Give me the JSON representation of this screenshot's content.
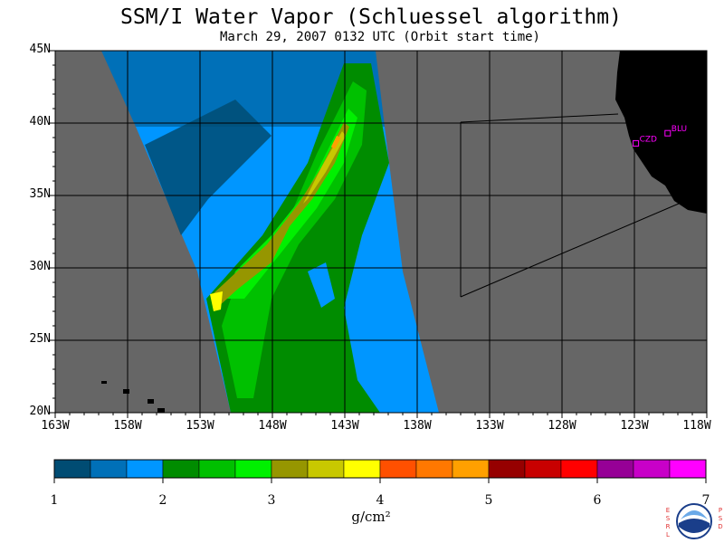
{
  "header": {
    "title": "SSM/I Water Vapor (Schluessel algorithm)",
    "subtitle": "March 29, 2007  0132 UTC  (Orbit start time)"
  },
  "map": {
    "lat_labels": [
      "45N",
      "40N",
      "35N",
      "30N",
      "25N",
      "20N"
    ],
    "lon_labels": [
      "163W",
      "158W",
      "153W",
      "148W",
      "143W",
      "138W",
      "133W",
      "128W",
      "123W",
      "118W"
    ],
    "lat_range": [
      20,
      45
    ],
    "lon_range": [
      -163,
      -118
    ],
    "stations": [
      {
        "id": "CZD",
        "lon": -122.9,
        "lat": 38.6
      },
      {
        "id": "BLU",
        "lon": -120.7,
        "lat": 39.3
      }
    ],
    "colors": {
      "background": "#666666",
      "land": "#000000",
      "station": "#ff00ff",
      "grid": "#000000"
    }
  },
  "colorbar": {
    "tick_labels": [
      "1",
      "2",
      "3",
      "4",
      "5",
      "6",
      "7"
    ],
    "unit": "g/cm²",
    "colors": [
      "#004c73",
      "#0070b8",
      "#0096ff",
      "#008c00",
      "#00c000",
      "#00f000",
      "#969600",
      "#c8c800",
      "#ffff00",
      "#ff5000",
      "#ff7800",
      "#ffa000",
      "#960000",
      "#c80000",
      "#ff0000",
      "#960096",
      "#c800c8",
      "#ff00ff"
    ]
  },
  "logo": {
    "left_letters": "ESRL",
    "right_letters": "PSD",
    "emblem": "NOAA"
  }
}
